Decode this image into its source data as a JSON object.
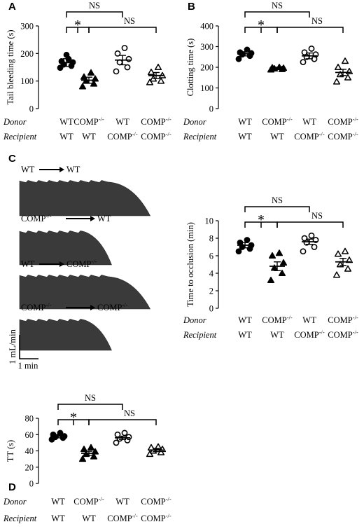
{
  "panels": [
    {
      "label": "A",
      "chart_data": {
        "type": "scatter",
        "ylabel": "Tail bleeding time (s)",
        "ylim": [
          0,
          300
        ],
        "yticks": [
          "0",
          "100",
          "200",
          "300"
        ],
        "row_labels": [
          "Donor",
          "Recipient"
        ],
        "groups": [
          {
            "donor": "WT",
            "recipient": "WT",
            "marker": "filled-circle",
            "mean": 167,
            "sem": 14,
            "points": [
              148,
              155,
              160,
              168,
              172,
              180,
              195
            ]
          },
          {
            "donor": "COMP-/-",
            "recipient": "WT",
            "marker": "filled-triangle",
            "mean": 103,
            "sem": 11,
            "points": [
              80,
              90,
              100,
              108,
              115,
              130
            ]
          },
          {
            "donor": "WT",
            "recipient": "COMP-/-",
            "marker": "open-circle",
            "mean": 176,
            "sem": 17,
            "points": [
              135,
              150,
              168,
              180,
              200,
              220
            ]
          },
          {
            "donor": "COMP-/-",
            "recipient": "COMP-/-",
            "marker": "open-triangle",
            "mean": 120,
            "sem": 11,
            "points": [
              95,
              100,
              108,
              120,
              132,
              150
            ]
          }
        ],
        "comparisons": [
          {
            "from": 0,
            "to": 2,
            "label": "NS"
          },
          {
            "from": 0,
            "to": 1,
            "label": "*"
          },
          {
            "from": 1,
            "to": 3,
            "label": "NS"
          }
        ]
      }
    },
    {
      "label": "B",
      "chart_data": {
        "type": "scatter",
        "ylabel": "Clotting time (s)",
        "ylim": [
          0,
          400
        ],
        "yticks": [
          "0",
          "100",
          "200",
          "300",
          "400"
        ],
        "row_labels": [
          "Donor",
          "Recipient"
        ],
        "groups": [
          {
            "donor": "WT",
            "recipient": "WT",
            "marker": "filled-circle",
            "mean": 265,
            "sem": 10,
            "points": [
              240,
              255,
              262,
              268,
              272,
              285
            ]
          },
          {
            "donor": "COMP-/-",
            "recipient": "WT",
            "marker": "filled-triangle",
            "mean": 195,
            "sem": 5,
            "points": [
              188,
              190,
              193,
              196,
              198,
              200
            ]
          },
          {
            "donor": "WT",
            "recipient": "COMP-/-",
            "marker": "open-circle",
            "mean": 255,
            "sem": 14,
            "points": [
              225,
              240,
              250,
              262,
              272,
              290
            ]
          },
          {
            "donor": "COMP-/-",
            "recipient": "COMP-/-",
            "marker": "open-triangle",
            "mean": 175,
            "sem": 15,
            "points": [
              130,
              150,
              165,
              180,
              200,
              230
            ]
          }
        ],
        "comparisons": [
          {
            "from": 0,
            "to": 2,
            "label": "NS"
          },
          {
            "from": 0,
            "to": 1,
            "label": "*"
          },
          {
            "from": 1,
            "to": 3,
            "label": "NS"
          }
        ]
      }
    },
    {
      "label": "C",
      "flow_traces": [
        {
          "donor": "WT",
          "recipient": "WT",
          "end": 0.88
        },
        {
          "donor": "COMP-/-",
          "recipient": "WT",
          "end": 0.62
        },
        {
          "donor": "WT",
          "recipient": "COMP-/-",
          "end": 0.88
        },
        {
          "donor": "COMP-/-",
          "recipient": "COMP-/-",
          "end": 0.62
        }
      ],
      "scale_bar": {
        "y": "1 mL/min",
        "x": "1 min"
      },
      "chart_data": {
        "type": "scatter",
        "ylabel": "Time to occlusion (min)",
        "ylim": [
          0,
          10
        ],
        "yticks": [
          "0",
          "2",
          "4",
          "6",
          "8",
          "10"
        ],
        "row_labels": [
          "Donor",
          "Recipient"
        ],
        "groups": [
          {
            "donor": "WT",
            "recipient": "WT",
            "marker": "filled-circle",
            "mean": 7.2,
            "sem": 0.3,
            "points": [
              6.5,
              6.8,
              7.0,
              7.2,
              7.5,
              7.8
            ]
          },
          {
            "donor": "COMP-/-",
            "recipient": "WT",
            "marker": "filled-triangle",
            "mean": 4.8,
            "sem": 0.5,
            "points": [
              3.2,
              4.0,
              4.6,
              5.2,
              6.0,
              6.3
            ]
          },
          {
            "donor": "WT",
            "recipient": "COMP-/-",
            "marker": "open-circle",
            "mean": 7.6,
            "sem": 0.3,
            "points": [
              6.5,
              7.0,
              7.5,
              7.8,
              8.0,
              8.3
            ]
          },
          {
            "donor": "COMP-/-",
            "recipient": "COMP-/-",
            "marker": "open-triangle",
            "mean": 5.3,
            "sem": 0.4,
            "points": [
              3.8,
              4.5,
              5.0,
              5.5,
              6.2,
              6.5
            ]
          }
        ],
        "comparisons": [
          {
            "from": 0,
            "to": 2,
            "label": "NS"
          },
          {
            "from": 0,
            "to": 1,
            "label": "*"
          },
          {
            "from": 1,
            "to": 3,
            "label": "NS"
          }
        ]
      }
    },
    {
      "label": "D",
      "chart_data": {
        "type": "scatter",
        "ylabel": "TT (s)",
        "ylim": [
          0,
          80
        ],
        "yticks": [
          "0",
          "20",
          "40",
          "60",
          "80"
        ],
        "row_labels": [
          "Donor",
          "Recipient"
        ],
        "groups": [
          {
            "donor": "WT",
            "recipient": "WT",
            "marker": "filled-circle",
            "mean": 58,
            "sem": 2,
            "points": [
              54,
              56,
              57,
              58,
              60,
              62
            ]
          },
          {
            "donor": "COMP-/-",
            "recipient": "WT",
            "marker": "filled-triangle",
            "mean": 37,
            "sem": 2.5,
            "points": [
              30,
              33,
              36,
              39,
              42,
              44
            ]
          },
          {
            "donor": "WT",
            "recipient": "COMP-/-",
            "marker": "open-circle",
            "mean": 56,
            "sem": 2,
            "points": [
              50,
              53,
              55,
              57,
              60,
              62
            ]
          },
          {
            "donor": "COMP-/-",
            "recipient": "COMP-/-",
            "marker": "open-triangle",
            "mean": 41,
            "sem": 2,
            "points": [
              36,
              38,
              40,
              42,
              44,
              45
            ]
          }
        ],
        "comparisons": [
          {
            "from": 0,
            "to": 2,
            "label": "NS"
          },
          {
            "from": 0,
            "to": 1,
            "label": "*"
          },
          {
            "from": 1,
            "to": 3,
            "label": "NS"
          }
        ]
      }
    }
  ]
}
